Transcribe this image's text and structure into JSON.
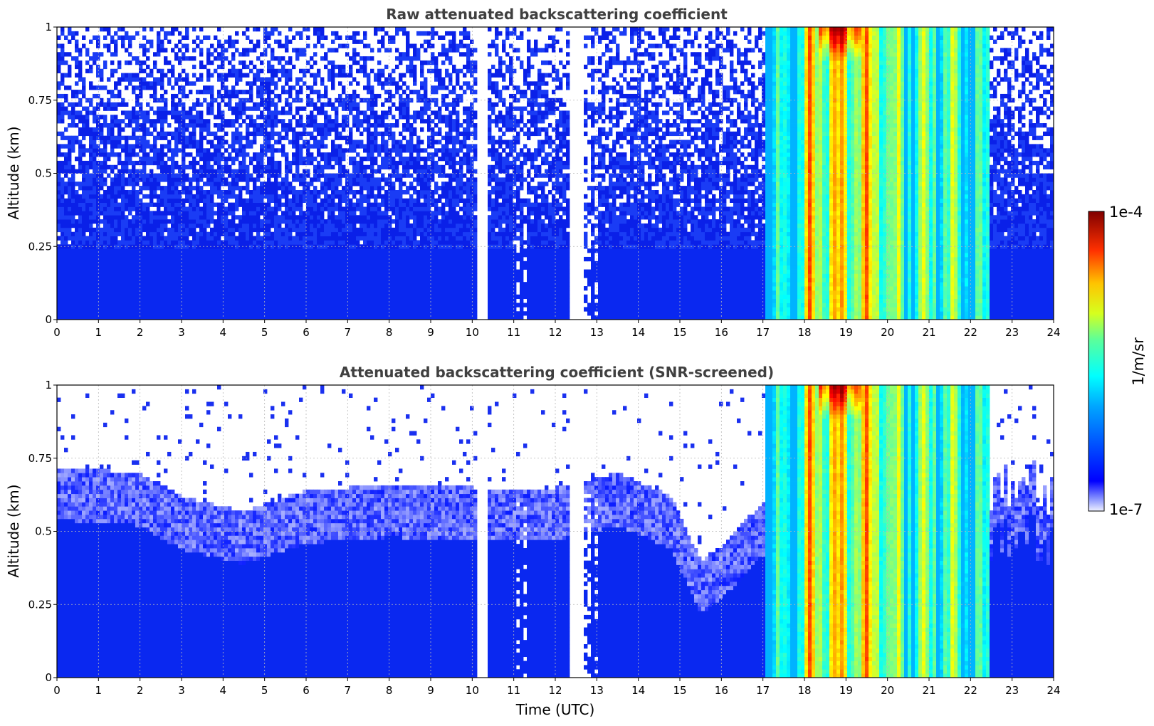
{
  "chart_data": [
    {
      "type": "heatmap",
      "title": "Raw attenuated backscattering coefficient",
      "xlabel": "",
      "ylabel": "Altitude (km)",
      "xlim": [
        0,
        24
      ],
      "ylim": [
        0,
        1
      ],
      "xticks": [
        "0",
        "1",
        "2",
        "3",
        "4",
        "5",
        "6",
        "7",
        "8",
        "9",
        "10",
        "11",
        "12",
        "13",
        "14",
        "15",
        "16",
        "17",
        "18",
        "19",
        "20",
        "21",
        "22",
        "23",
        "24"
      ],
      "yticks": [
        "0",
        "0.25",
        "0.5",
        "0.75",
        "1"
      ],
      "grid": true,
      "data_gaps_utc": [
        [
          10.15,
          10.4
        ],
        [
          12.3,
          12.65
        ]
      ],
      "low_signal_period_utc": [
        0,
        17.1
      ],
      "cloud_period_utc": [
        17.1,
        22.4
      ],
      "max_signal_utc": [
        18.3,
        19.4
      ],
      "max_signal_altitude_km": [
        0.9,
        1.0
      ]
    },
    {
      "type": "heatmap",
      "title": "Attenuated backscattering coefficient (SNR-screened)",
      "xlabel": "Time (UTC)",
      "ylabel": "Altitude (km)",
      "xlim": [
        0,
        24
      ],
      "ylim": [
        0,
        1
      ],
      "xticks": [
        "0",
        "1",
        "2",
        "3",
        "4",
        "5",
        "6",
        "7",
        "8",
        "9",
        "10",
        "11",
        "12",
        "13",
        "14",
        "15",
        "16",
        "17",
        "18",
        "19",
        "20",
        "21",
        "22",
        "23",
        "24"
      ],
      "yticks": [
        "0",
        "0.25",
        "0.5",
        "0.75",
        "1"
      ],
      "grid": true,
      "screened_top_km": [
        {
          "t": 0,
          "alt": 0.72
        },
        {
          "t": 2,
          "alt": 0.7
        },
        {
          "t": 3,
          "alt": 0.62
        },
        {
          "t": 4.5,
          "alt": 0.57
        },
        {
          "t": 6,
          "alt": 0.64
        },
        {
          "t": 8,
          "alt": 0.66
        },
        {
          "t": 10,
          "alt": 0.65
        },
        {
          "t": 12,
          "alt": 0.65
        },
        {
          "t": 13.5,
          "alt": 0.7
        },
        {
          "t": 14.8,
          "alt": 0.62
        },
        {
          "t": 15.5,
          "alt": 0.4
        },
        {
          "t": 16,
          "alt": 0.45
        },
        {
          "t": 17,
          "alt": 0.6
        }
      ]
    }
  ],
  "colorbar": {
    "max_label": "1e-4",
    "min_label": "1e-7",
    "unit_label": "1/m/sr",
    "colormap": "jet"
  },
  "colors": {
    "background": "#ffffff",
    "base_blue": "#0a28f0",
    "title_text": "#404040"
  }
}
